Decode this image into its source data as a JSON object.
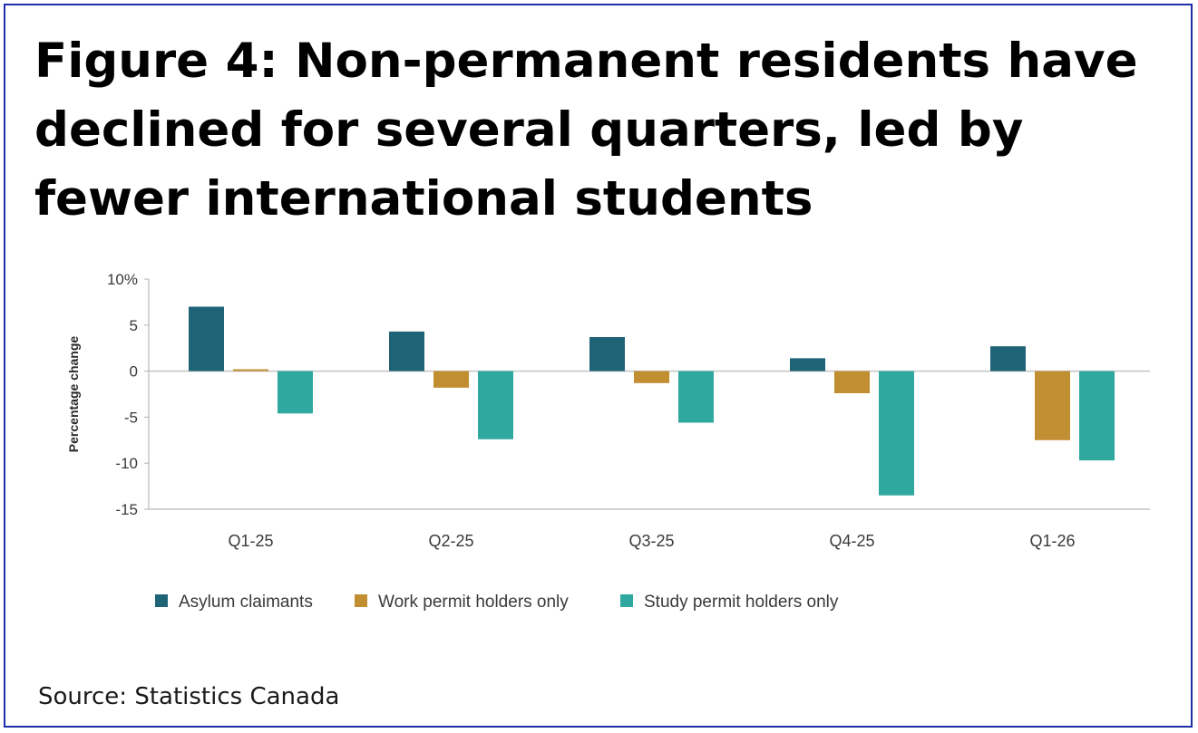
{
  "title": "Figure 4: Non-permanent residents have declined for several quarters, led by fewer international students",
  "source": "Source: Statistics Canada",
  "chart_data": {
    "type": "bar",
    "ylabel": "Percentage change",
    "ylim": [
      -15,
      10
    ],
    "yticks": [
      10,
      5,
      0,
      -5,
      -10,
      -15
    ],
    "ytick_labels": [
      "10%",
      "5",
      "0",
      "-5",
      "-10",
      "-15"
    ],
    "grid": false,
    "legend_position": "bottom",
    "categories": [
      "Q1-25",
      "Q2-25",
      "Q3-25",
      "Q4-25",
      "Q1-26"
    ],
    "series": [
      {
        "name": "Asylum claimants",
        "color": "#1f6476",
        "values": [
          7.0,
          4.3,
          3.7,
          1.4,
          2.7
        ]
      },
      {
        "name": "Work permit holders only",
        "color": "#c18e32",
        "values": [
          0.2,
          -1.8,
          -1.3,
          -2.4,
          -7.5
        ]
      },
      {
        "name": "Study permit holders only",
        "color": "#2fa8a0",
        "values": [
          -4.6,
          -7.4,
          -5.6,
          -13.5,
          -9.7
        ]
      }
    ]
  }
}
